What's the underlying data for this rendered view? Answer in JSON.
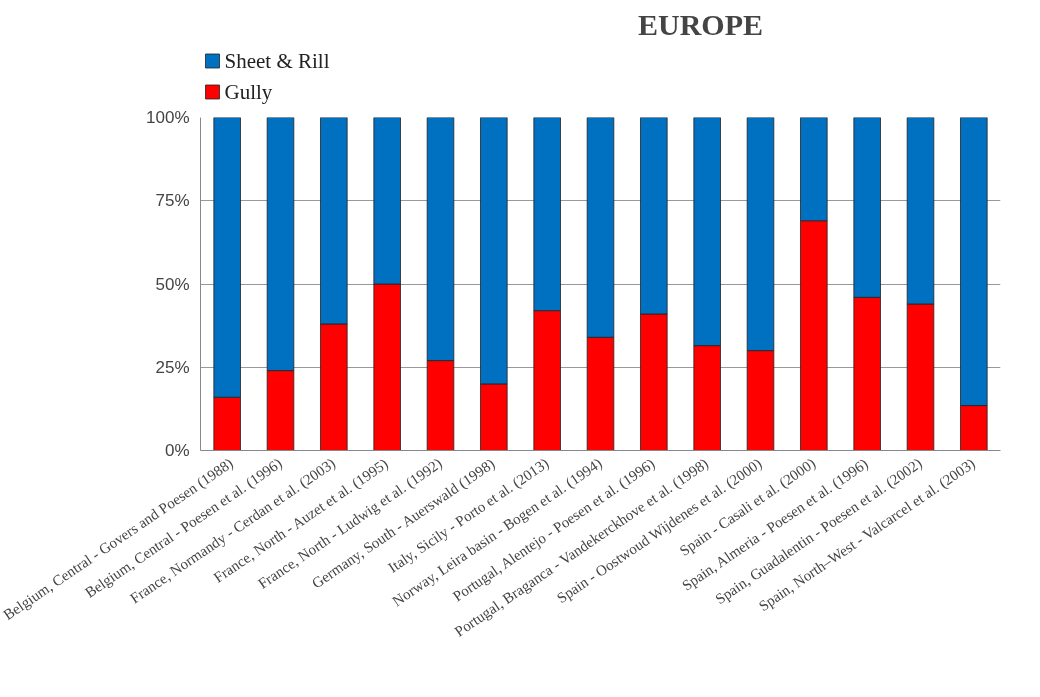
{
  "chart_data": {
    "type": "bar",
    "title": "EUROPE",
    "stacked": true,
    "categories": [
      "Belgium, Central - Govers and Poesen (1988)",
      "Belgium, Central - Poesen et al. (1996)",
      "France, Normandy - Cerdan et al. (2003)",
      "France, North - Auzet et al. (1995)",
      "France, North - Ludwig et al. (1992)",
      "Germany, South - Auerswald (1998)",
      "Italy, Sicily - Porto et al. (2013)",
      "Norway, Leira basin - Bogen et al. (1994)",
      "Portugal, Alentejo - Poesen et al. (1996)",
      "Portugal, Braganca - Vandekerckhove et al. (1998)",
      "Spain - Oostwoud Wijdenes et al. (2000)",
      "Spain - Casali et al. (2000)",
      "Spain, Almeria - Poesen et al. (1996)",
      "Spain, Guadalentin - Poesen et al. (2002)",
      "Spain, North–West - Valcarcel et al. (2003)"
    ],
    "series": [
      {
        "name": "Gully",
        "color": "#ff0000",
        "values": [
          16,
          24,
          38,
          50,
          27,
          20,
          42,
          34,
          41,
          31.5,
          30,
          69,
          46,
          44,
          13.5
        ]
      },
      {
        "name": "Sheet & Rill",
        "color": "#0070c0",
        "values": [
          84,
          76,
          62,
          50,
          73,
          80,
          58,
          66,
          59,
          68.5,
          70,
          31,
          54,
          56,
          86.5
        ]
      }
    ],
    "ylim": [
      0,
      100
    ],
    "yticks": [
      {
        "value": 0,
        "label": "0%"
      },
      {
        "value": 25,
        "label": "25%"
      },
      {
        "value": 50,
        "label": "50%"
      },
      {
        "value": 75,
        "label": "75%"
      },
      {
        "value": 100,
        "label": "100%"
      }
    ],
    "grid": "y",
    "legend": "top left"
  }
}
